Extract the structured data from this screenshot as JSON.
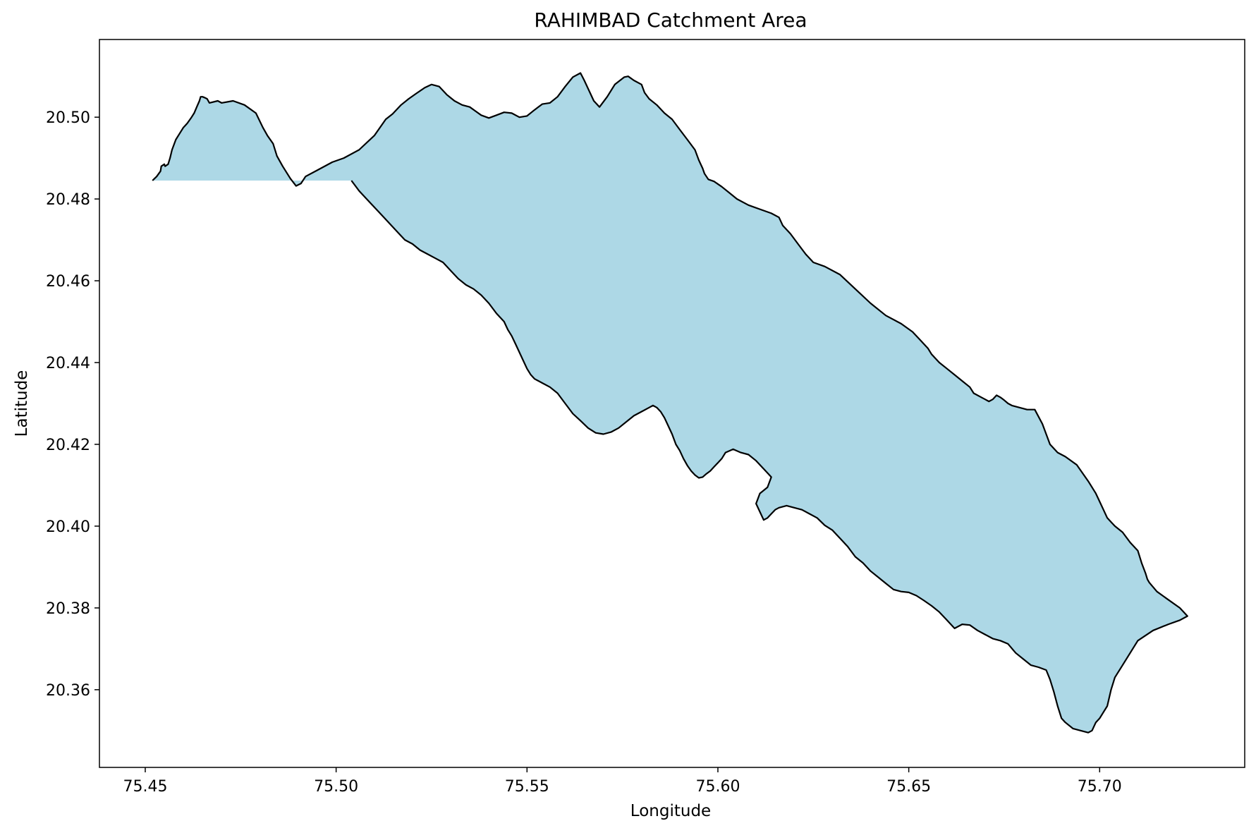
{
  "chart_data": {
    "type": "map",
    "title": "RAHIMBAD Catchment Area",
    "xlabel": "Longitude",
    "ylabel": "Latitude",
    "xlim": [
      75.438,
      75.738
    ],
    "ylim": [
      20.341,
      20.519
    ],
    "x_ticks": [
      75.45,
      75.5,
      75.55,
      75.6,
      75.65,
      75.7
    ],
    "x_tick_labels": [
      "75.45",
      "75.50",
      "75.55",
      "75.60",
      "75.65",
      "75.70"
    ],
    "y_ticks": [
      20.36,
      20.38,
      20.4,
      20.42,
      20.44,
      20.46,
      20.48,
      20.5
    ],
    "y_tick_labels": [
      "20.36",
      "20.38",
      "20.40",
      "20.42",
      "20.44",
      "20.46",
      "20.48",
      "20.50"
    ],
    "grid": false,
    "fill_color": "#add8e6",
    "edge_color": "#000000",
    "boundary": {
      "name": "RAHIMBAD",
      "lon": [
        75.4519,
        75.453,
        75.454,
        75.4542,
        75.455,
        75.4552,
        75.456,
        75.4565,
        75.457,
        75.458,
        75.459,
        75.46,
        75.461,
        75.462,
        75.4628,
        75.4635,
        75.4642,
        75.4645,
        75.465,
        75.4655,
        75.4662,
        75.4668,
        75.469,
        75.47,
        75.473,
        75.476,
        75.479,
        75.4808,
        75.482,
        75.4835,
        75.4845,
        75.486,
        75.488,
        75.4895,
        75.4908,
        75.492,
        75.495,
        75.499,
        75.502,
        75.506,
        75.51,
        75.513,
        75.5148,
        75.517,
        75.519,
        75.521,
        75.5232,
        75.525,
        75.527,
        75.529,
        75.531,
        75.533,
        75.535,
        75.5365,
        75.538,
        75.54,
        75.542,
        75.544,
        75.546,
        75.548,
        75.55,
        75.552,
        75.554,
        75.556,
        75.558,
        75.56,
        75.562,
        75.564,
        75.565,
        75.5665,
        75.5675,
        75.569,
        75.571,
        75.573,
        75.5755,
        75.5765,
        75.578,
        75.58,
        75.5808,
        75.582,
        75.584,
        75.586,
        75.588,
        75.59,
        75.592,
        75.594,
        75.595,
        75.596,
        75.5965,
        75.5975,
        75.599,
        75.601,
        75.603,
        75.605,
        75.608,
        75.611,
        75.614,
        75.616,
        75.617,
        75.619,
        75.621,
        75.623,
        75.625,
        75.628,
        75.632,
        75.636,
        75.64,
        75.644,
        75.648,
        75.651,
        75.653,
        75.655,
        75.656,
        75.658,
        75.66,
        75.662,
        75.664,
        75.666,
        75.667,
        75.669,
        75.67,
        75.671,
        75.672,
        75.673,
        75.674,
        75.675,
        75.676,
        75.677,
        75.679,
        75.681,
        75.683,
        75.685,
        75.687,
        75.689,
        75.691,
        75.694,
        75.697,
        75.699,
        75.7,
        75.701,
        75.702,
        75.703,
        75.704,
        75.706,
        75.708,
        75.71,
        75.711,
        75.712,
        75.7125,
        75.713,
        75.715,
        75.718,
        75.721,
        75.723,
        75.721,
        75.718,
        75.714,
        75.71,
        75.708,
        75.706,
        75.704,
        75.703,
        75.702,
        75.701,
        75.7,
        75.699,
        75.698,
        75.697,
        75.695,
        75.693,
        75.691,
        75.69,
        75.689,
        75.688,
        75.687,
        75.686,
        75.684,
        75.682,
        75.68,
        75.678,
        75.676,
        75.674,
        75.672,
        75.67,
        75.668,
        75.666,
        75.664,
        75.662,
        75.66,
        75.658,
        75.656,
        75.654,
        75.652,
        75.65,
        75.648,
        75.646,
        75.644,
        75.642,
        75.64,
        75.638,
        75.636,
        75.634,
        75.632,
        75.63,
        75.628,
        75.626,
        75.624,
        75.622,
        75.62,
        75.618,
        75.616,
        75.615,
        75.614,
        75.613,
        75.612,
        75.611,
        75.61,
        75.611,
        75.613,
        75.614,
        75.612,
        75.61,
        75.608,
        75.606,
        75.604,
        75.602,
        75.601,
        75.6,
        75.599,
        75.598,
        75.597,
        75.596,
        75.595,
        75.594,
        75.593,
        75.592,
        75.591,
        75.59,
        75.589,
        75.588,
        75.587,
        75.586,
        75.585,
        75.584,
        75.583,
        75.582,
        75.58,
        75.578,
        75.576,
        75.574,
        75.572,
        75.57,
        75.568,
        75.566,
        75.564,
        75.562,
        75.56,
        75.558,
        75.556,
        75.554,
        75.552,
        75.551,
        75.55,
        75.549,
        75.548,
        75.547,
        75.546,
        75.545,
        75.544,
        75.542,
        75.54,
        75.538,
        75.536,
        75.534,
        75.532,
        75.53,
        75.528,
        75.526,
        75.524,
        75.522,
        75.52,
        75.518,
        75.516,
        75.514,
        75.512,
        75.51,
        75.508,
        75.506,
        75.504,
        75.502,
        75.5,
        75.498,
        75.496,
        75.494,
        75.492,
        75.49,
        75.488,
        75.486,
        75.484,
        75.482,
        75.48,
        75.478,
        75.476,
        75.474,
        75.472,
        75.47,
        75.468,
        75.466,
        75.464,
        75.462,
        75.46,
        75.458,
        75.456,
        75.454,
        75.453,
        75.452,
        75.4519
      ],
      "lat": [
        20.4845,
        20.4855,
        20.4868,
        20.488,
        20.4885,
        20.488,
        20.4885,
        20.49,
        20.492,
        20.4945,
        20.496,
        20.4975,
        20.4985,
        20.4998,
        20.501,
        20.5025,
        20.504,
        20.505,
        20.505,
        20.5048,
        20.5045,
        20.5035,
        20.504,
        20.5035,
        20.504,
        20.503,
        20.501,
        20.4975,
        20.4955,
        20.4935,
        20.4905,
        20.488,
        20.485,
        20.4832,
        20.4838,
        20.4855,
        20.487,
        20.489,
        20.49,
        20.492,
        20.4955,
        20.4995,
        20.5008,
        20.503,
        20.5045,
        20.5058,
        20.5072,
        20.508,
        20.5075,
        20.5055,
        20.504,
        20.503,
        20.5025,
        20.5015,
        20.5005,
        20.4998,
        20.5005,
        20.5012,
        20.501,
        20.5,
        20.5003,
        20.5018,
        20.5032,
        20.5035,
        20.505,
        20.5075,
        20.5098,
        20.5108,
        20.509,
        20.506,
        20.504,
        20.5025,
        20.505,
        20.508,
        20.5098,
        20.51,
        20.509,
        20.508,
        20.506,
        20.5045,
        20.503,
        20.501,
        20.4995,
        20.497,
        20.4945,
        20.492,
        20.4895,
        20.4875,
        20.4862,
        20.4848,
        20.4843,
        20.483,
        20.4815,
        20.48,
        20.4785,
        20.4775,
        20.4765,
        20.4755,
        20.4735,
        20.4715,
        20.469,
        20.4665,
        20.4645,
        20.4635,
        20.4615,
        20.458,
        20.4545,
        20.4515,
        20.4495,
        20.4475,
        20.4455,
        20.4435,
        20.442,
        20.44,
        20.4385,
        20.437,
        20.4355,
        20.434,
        20.4325,
        20.4315,
        20.431,
        20.4305,
        20.431,
        20.432,
        20.4315,
        20.4308,
        20.43,
        20.4295,
        20.429,
        20.4285,
        20.4285,
        20.425,
        20.42,
        20.418,
        20.417,
        20.415,
        20.411,
        20.408,
        20.406,
        20.404,
        20.402,
        20.401,
        20.4,
        20.3985,
        20.396,
        20.394,
        20.391,
        20.3885,
        20.387,
        20.3862,
        20.384,
        20.382,
        20.38,
        20.378,
        20.377,
        20.376,
        20.3745,
        20.372,
        20.369,
        20.366,
        20.363,
        20.36,
        20.356,
        20.3545,
        20.353,
        20.352,
        20.35,
        20.3495,
        20.35,
        20.3505,
        20.352,
        20.353,
        20.356,
        20.3595,
        20.3625,
        20.3648,
        20.3655,
        20.366,
        20.3675,
        20.369,
        20.3712,
        20.372,
        20.3725,
        20.3735,
        20.3745,
        20.3758,
        20.376,
        20.375,
        20.377,
        20.379,
        20.3805,
        20.3818,
        20.383,
        20.3838,
        20.384,
        20.3845,
        20.386,
        20.3875,
        20.389,
        20.391,
        20.3925,
        20.395,
        20.397,
        20.399,
        20.4002,
        20.402,
        20.403,
        20.404,
        20.4045,
        20.405,
        20.4045,
        20.404,
        20.403,
        20.402,
        20.4015,
        20.4035,
        20.4055,
        20.408,
        20.4095,
        20.412,
        20.414,
        20.416,
        20.4175,
        20.418,
        20.4188,
        20.418,
        20.4165,
        20.4155,
        20.4145,
        20.4135,
        20.4128,
        20.412,
        20.4118,
        20.4125,
        20.4135,
        20.4148,
        20.4165,
        20.4185,
        20.42,
        20.4225,
        20.4245,
        20.4265,
        20.428,
        20.429,
        20.4295,
        20.429,
        20.428,
        20.427,
        20.4255,
        20.424,
        20.423,
        20.4225,
        20.4228,
        20.424,
        20.4258,
        20.4275,
        20.43,
        20.4325,
        20.434,
        20.435,
        20.436,
        20.437,
        20.4385,
        20.4405,
        20.4425,
        20.4445,
        20.4465,
        20.448,
        20.45,
        20.452,
        20.4545,
        20.4565,
        20.458,
        20.459,
        20.4605,
        20.4625,
        20.4645,
        20.4655,
        20.4665,
        20.4675,
        20.469,
        20.47,
        20.472,
        20.474,
        20.476,
        20.478,
        20.48,
        20.482,
        20.4845
      ]
    }
  }
}
